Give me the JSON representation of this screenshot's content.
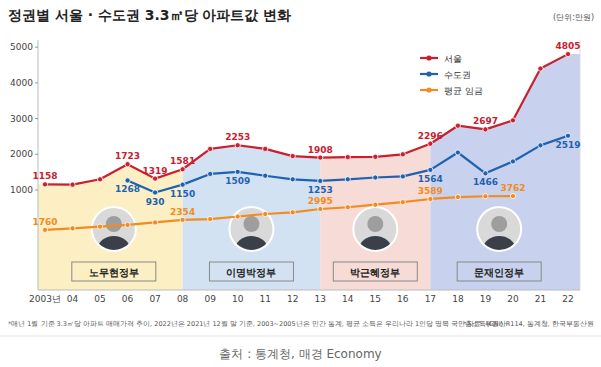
{
  "chart_data": {
    "type": "line",
    "title": "정권별 서울 · 수도권 3.3㎡당 아파트값 변화",
    "y_label": "(단위:만원)",
    "categories": [
      "2003년",
      "04",
      "05",
      "06",
      "07",
      "08",
      "09",
      "10",
      "11",
      "12",
      "13",
      "14",
      "15",
      "16",
      "17",
      "18",
      "19",
      "20",
      "21",
      "22"
    ],
    "series": [
      {
        "name": "서울",
        "color": "#c8202f",
        "marker": "circle",
        "values": [
          1158,
          1150,
          1300,
          1723,
          1319,
          1581,
          2150,
          2253,
          2150,
          1950,
          1908,
          1920,
          1930,
          2000,
          2296,
          2800,
          2697,
          2950,
          4400,
          4805
        ],
        "value_labels": [
          "1158",
          null,
          null,
          "1723",
          "1319",
          "1581",
          null,
          "2253",
          null,
          null,
          "1908",
          null,
          null,
          null,
          "2296",
          null,
          "2697",
          null,
          null,
          "4805"
        ]
      },
      {
        "name": "수도권",
        "color": "#1f62b0",
        "marker": "circle",
        "values": [
          null,
          null,
          null,
          1268,
          930,
          1150,
          1450,
          1509,
          1400,
          1300,
          1253,
          1300,
          1350,
          1380,
          1564,
          2050,
          1466,
          1800,
          2250,
          2519
        ],
        "value_labels": [
          null,
          null,
          null,
          "1268",
          "930",
          "1150",
          null,
          "1509",
          null,
          null,
          "1253",
          null,
          null,
          null,
          "1564",
          null,
          "1466",
          null,
          null,
          "2519"
        ]
      },
      {
        "name": "평균 임금",
        "color": "#f08c21",
        "marker": "circle",
        "axis": "y2",
        "values": [
          1760,
          1850,
          1950,
          2050,
          2200,
          2354,
          2400,
          2550,
          2700,
          2800,
          2995,
          3100,
          3250,
          3400,
          3589,
          3700,
          3750,
          3762,
          null,
          null
        ],
        "value_labels": [
          "1760",
          null,
          null,
          null,
          null,
          "2354",
          null,
          null,
          null,
          null,
          "2995",
          null,
          null,
          null,
          "3589",
          null,
          null,
          "3762",
          null,
          null
        ]
      }
    ],
    "ylim": [
      -1800,
      5200
    ],
    "yticks": [
      1000,
      2000,
      3000,
      4000,
      5000
    ],
    "y2lim": [
      -1800,
      13000
    ],
    "y2ticks": [],
    "grid": false,
    "legend": "top-right",
    "data_labels": true,
    "periods": [
      {
        "label": "노무현정부",
        "from": "2003년",
        "to": "08",
        "color": "#fcefc4"
      },
      {
        "label": "이명박정부",
        "from": "08",
        "to": "13",
        "color": "#d3e2f3"
      },
      {
        "label": "박근혜정부",
        "from": "13",
        "to": "17",
        "color": "#f6dbd6"
      },
      {
        "label": "문재인정부",
        "from": "17",
        "to": "22",
        "color": "#c8d2ee"
      }
    ],
    "notes": [
      "*매년 1월 기준 3.3㎡당 아파트 매매가격 추이, 2022년은 2021년 12월 말 기준, 2003~2005년은 민간 통계, 평균 소득은 우리나라 1인당 명목 국민총소득(GNI).",
      "*자료: 부동산R114, 통계청, 한국부동산원"
    ],
    "source": "출처 : 통계청, 매경 Economy"
  }
}
